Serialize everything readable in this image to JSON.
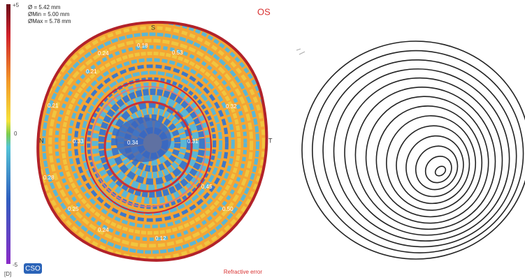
{
  "colorbar": {
    "labels": [
      "+5",
      "0",
      "-5",
      "[D]"
    ]
  },
  "map": {
    "info": [
      "Ø = 5.42 mm",
      "ØMin = 5.00 mm",
      "ØMax = 5.78 mm"
    ],
    "eye": "OS",
    "directions": [
      "S",
      "N",
      "T"
    ],
    "labels": [
      "0.24",
      "0.18",
      "0.53",
      "0.21",
      "0.32",
      "0.21",
      "0.28",
      "0.33",
      "0.34",
      "0.31",
      "0.45",
      "0.25",
      "0.50",
      "0.24",
      "0.12"
    ],
    "logo": "CSO",
    "caption": "Refractive error"
  }
}
